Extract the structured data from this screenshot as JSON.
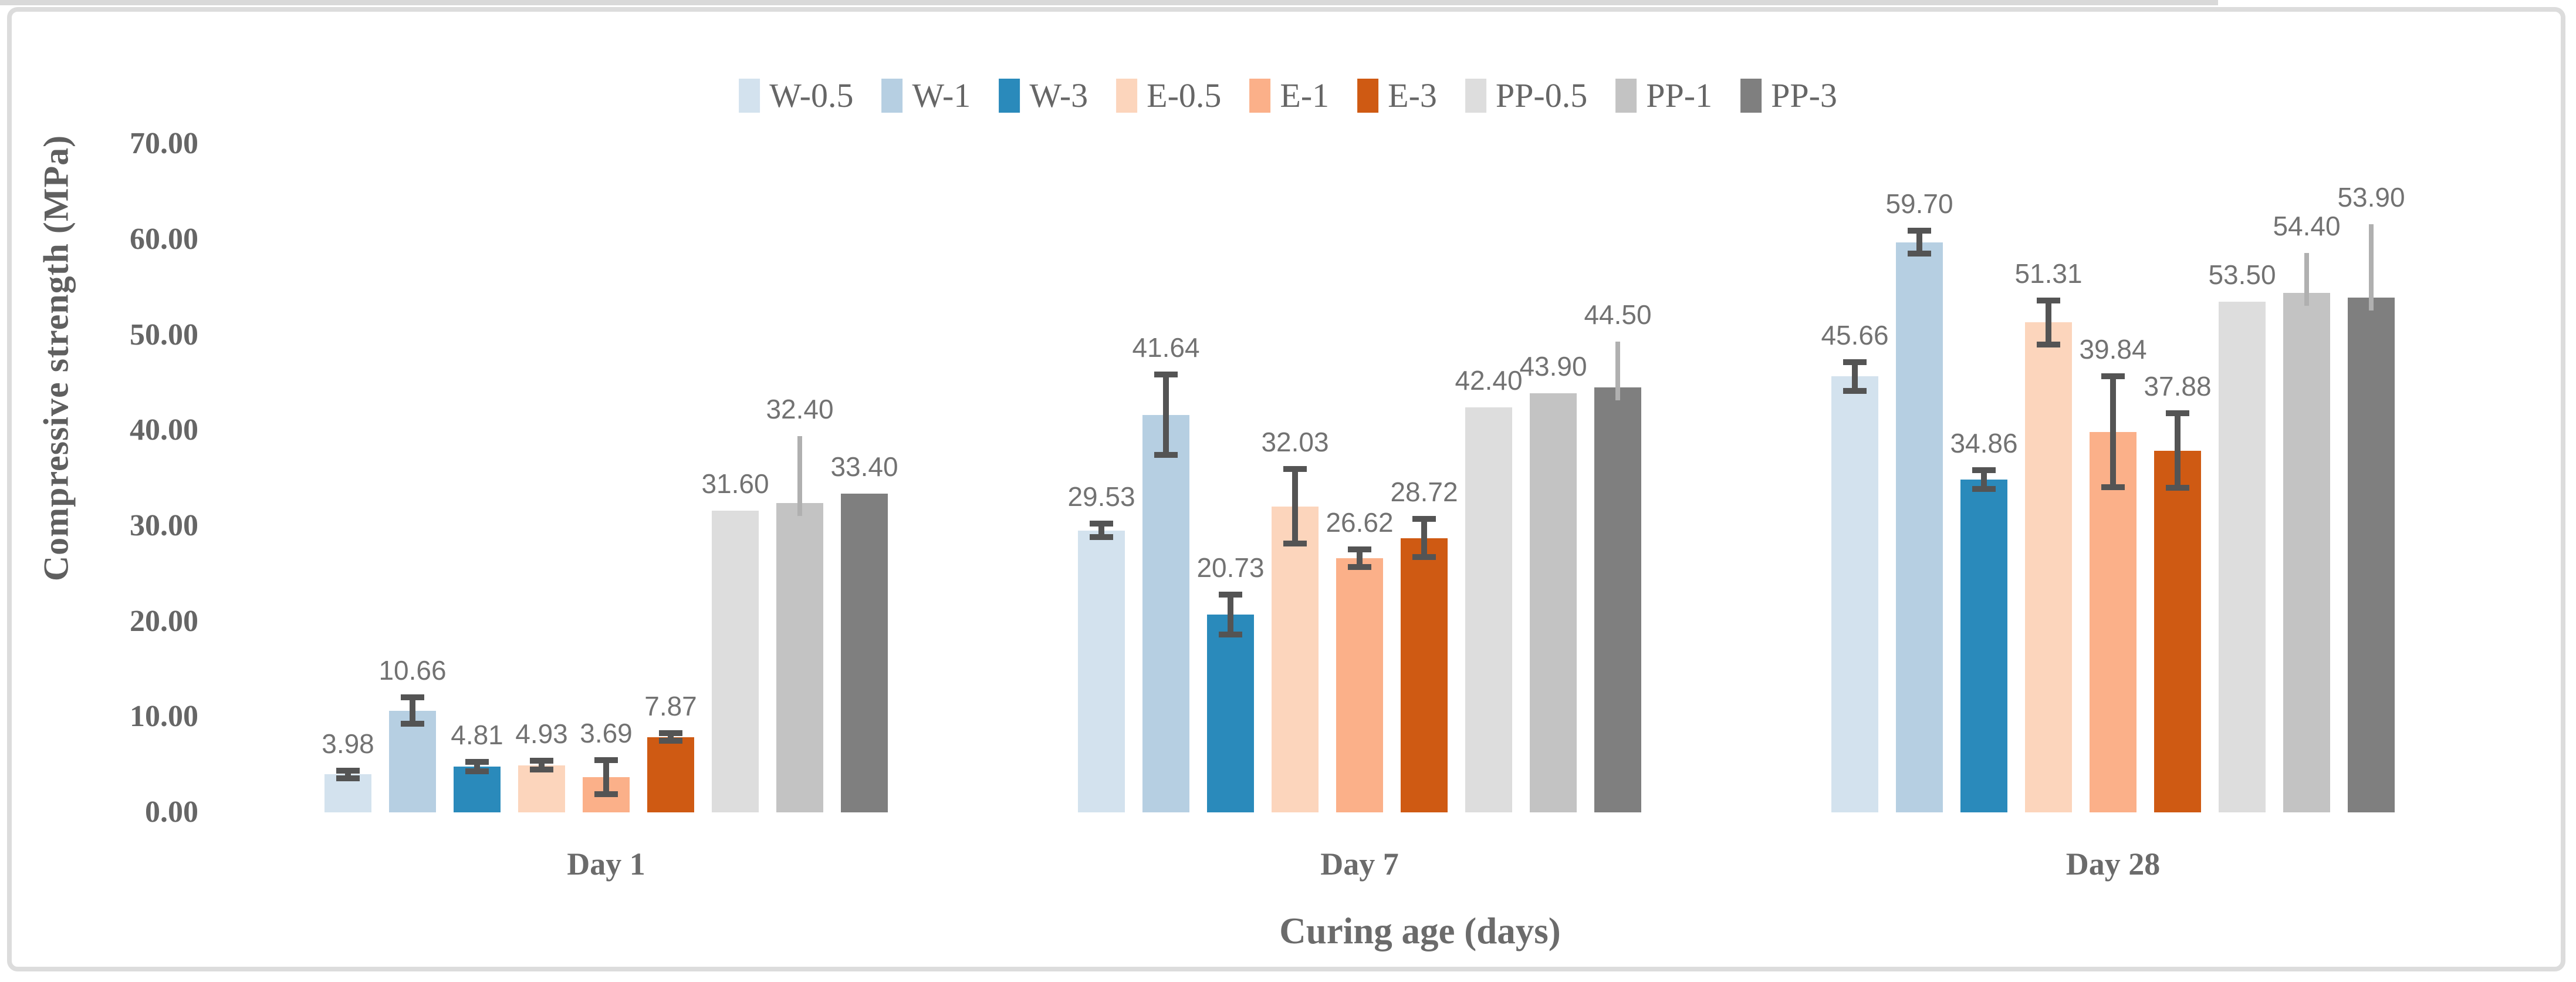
{
  "figure": {
    "background": "#ffffff",
    "border_color": "#dcdcdc"
  },
  "chart_data": {
    "type": "bar",
    "title": "",
    "xlabel": "Curing age (days)",
    "ylabel": "Compressive strength (MPa)",
    "ylim": [
      0,
      70
    ],
    "grid": false,
    "legend_position": "top",
    "yticks": [
      0,
      10,
      20,
      30,
      40,
      50,
      60,
      70
    ],
    "ytick_labels": [
      "0.00",
      "10.00",
      "20.00",
      "30.00",
      "40.00",
      "50.00",
      "60.00",
      "70.00"
    ],
    "categories": [
      "Day 1",
      "Day 7",
      "Day 28"
    ],
    "series": [
      {
        "name": "W-0.5",
        "color": "#d3e2ee",
        "values": [
          3.98,
          29.53,
          45.66
        ],
        "labels": [
          "3.98",
          "29.53",
          "45.66"
        ],
        "err": [
          0.4,
          0.7,
          1.5
        ],
        "err_style": "caps"
      },
      {
        "name": "W-1",
        "color": "#b6cfe2",
        "values": [
          10.66,
          41.64,
          59.7
        ],
        "labels": [
          "10.66",
          "41.64",
          "59.70"
        ],
        "err": [
          1.4,
          4.2,
          1.2
        ],
        "err_style": "caps"
      },
      {
        "name": "W-3",
        "color": "#2a8abb",
        "values": [
          4.81,
          20.73,
          34.86
        ],
        "labels": [
          "4.81",
          "20.73",
          "34.86"
        ],
        "err": [
          0.5,
          2.1,
          1.0
        ],
        "err_style": "caps"
      },
      {
        "name": "E-0.5",
        "color": "#fcd5bc",
        "values": [
          4.93,
          32.03,
          51.31
        ],
        "labels": [
          "4.93",
          "32.03",
          "51.31"
        ],
        "err": [
          0.45,
          3.9,
          2.3
        ],
        "err_style": "caps"
      },
      {
        "name": "E-1",
        "color": "#fbb089",
        "values": [
          3.69,
          26.62,
          39.84
        ],
        "labels": [
          "3.69",
          "26.62",
          "39.84"
        ],
        "err": [
          1.8,
          0.9,
          5.8
        ],
        "err_style": "caps"
      },
      {
        "name": "E-3",
        "color": "#cf5a13",
        "values": [
          7.87,
          28.72,
          37.88
        ],
        "labels": [
          "7.87",
          "28.72",
          "37.88"
        ],
        "err": [
          0.4,
          2.0,
          3.9
        ],
        "err_style": "caps"
      },
      {
        "name": "PP-0.5",
        "color": "#dddddd",
        "values": [
          31.6,
          42.4,
          53.5
        ],
        "labels": [
          "31.60",
          "42.40",
          "53.50"
        ],
        "err": [
          0,
          0,
          0
        ],
        "err_style": "thin-up"
      },
      {
        "name": "PP-1",
        "color": "#c3c3c3",
        "values": [
          32.4,
          43.9,
          54.4
        ],
        "labels": [
          "32.40",
          "43.90",
          "54.40"
        ],
        "err": [
          7.0,
          0,
          4.2
        ],
        "err_style": "thin-up"
      },
      {
        "name": "PP-3",
        "color": "#7f7f7f",
        "values": [
          33.4,
          44.5,
          53.9
        ],
        "labels": [
          "33.40",
          "44.50",
          "53.90"
        ],
        "err": [
          0,
          4.8,
          7.7
        ],
        "err_style": "thin-up"
      }
    ],
    "error_bar_color": "#545454",
    "thin_error_color": "#b0b0b0",
    "axis_line_color": "#d9d9d9",
    "tick_text_color": "#666666",
    "data_label_color": "#727272"
  }
}
